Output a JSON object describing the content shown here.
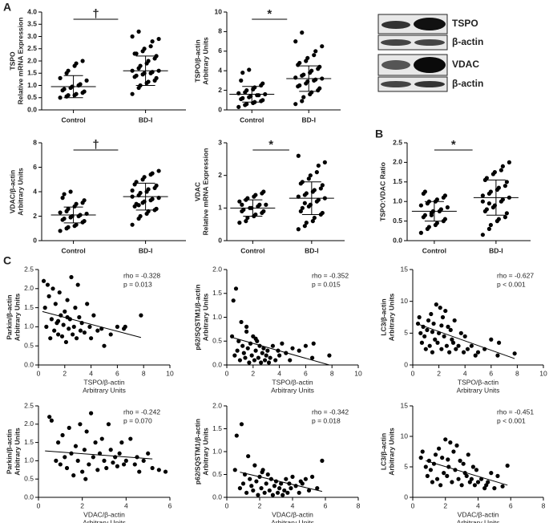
{
  "panel_labels": [
    "A",
    "B",
    "C"
  ],
  "blot": {
    "labels": [
      "TSPO",
      "β-actin",
      "VDAC",
      "β-actin"
    ]
  },
  "chart_data": [
    {
      "type": "dot",
      "ylabel": [
        "TSPO",
        "Relative mRNA Expression"
      ],
      "categories": [
        "Control",
        "BD-I"
      ],
      "significance": "†",
      "values": [
        [
          0.5,
          0.55,
          0.6,
          0.6,
          0.65,
          0.7,
          0.75,
          0.8,
          0.85,
          0.9,
          0.95,
          1.0,
          1.05,
          1.2,
          1.3,
          1.5,
          1.6,
          1.8,
          1.9,
          2.0
        ],
        [
          0.65,
          0.9,
          1.0,
          1.1,
          1.15,
          1.2,
          1.3,
          1.35,
          1.4,
          1.45,
          1.5,
          1.5,
          1.55,
          1.6,
          1.6,
          1.7,
          1.8,
          1.9,
          2.0,
          2.1,
          2.2,
          2.3,
          2.3,
          2.4,
          2.5,
          2.6,
          2.8,
          2.9,
          3.0,
          3.2
        ]
      ],
      "means": [
        0.95,
        1.6
      ],
      "sd": [
        0.45,
        0.6
      ],
      "color": "#000000",
      "ylim": [
        0,
        4
      ],
      "yticks": [
        {
          "value": 0,
          "label": "0.0"
        },
        0.5,
        {
          "value": 1,
          "label": "1.0"
        },
        1.5,
        {
          "value": 2,
          "label": "2.0"
        },
        2.5,
        {
          "value": 3,
          "label": "3.0"
        },
        3.5,
        {
          "value": 4,
          "label": "4.0"
        }
      ]
    },
    {
      "type": "dot",
      "ylabel": [
        "TSPO/β-actin",
        "Arbitrary Units"
      ],
      "categories": [
        "Control",
        "BD-I"
      ],
      "significance": "*",
      "values": [
        [
          0.3,
          0.5,
          0.6,
          0.7,
          0.8,
          0.9,
          1.0,
          1.1,
          1.2,
          1.3,
          1.4,
          1.5,
          1.5,
          1.6,
          1.7,
          1.8,
          2.0,
          2.1,
          2.3,
          2.5,
          2.7,
          3.0,
          3.8,
          4.1
        ],
        [
          0.6,
          0.9,
          1.3,
          1.6,
          1.8,
          2.0,
          2.2,
          2.4,
          2.5,
          2.7,
          2.9,
          3.0,
          3.1,
          3.2,
          3.3,
          3.5,
          3.6,
          3.8,
          4.0,
          4.2,
          4.4,
          4.6,
          4.8,
          5.0,
          5.3,
          5.6,
          6.0,
          6.5,
          7.0,
          7.9
        ]
      ],
      "means": [
        1.6,
        3.2
      ],
      "sd": [
        0.8,
        1.3
      ],
      "color": "#000000",
      "ylim": [
        0,
        10
      ],
      "yticks": [
        0,
        2,
        4,
        6,
        8,
        10
      ]
    },
    {
      "type": "dot",
      "ylabel": [
        "VDAC/β-actin",
        "Arbitrary Units"
      ],
      "categories": [
        "Control",
        "BD-I"
      ],
      "significance": "†",
      "values": [
        [
          0.8,
          1.0,
          1.1,
          1.2,
          1.3,
          1.5,
          1.6,
          1.7,
          1.8,
          1.9,
          2.0,
          2.0,
          2.1,
          2.2,
          2.3,
          2.4,
          2.6,
          2.8,
          3.0,
          3.1,
          3.3,
          3.5,
          3.8,
          4.0
        ],
        [
          1.3,
          1.8,
          2.0,
          2.2,
          2.4,
          2.5,
          2.6,
          2.8,
          3.0,
          3.1,
          3.2,
          3.3,
          3.4,
          3.5,
          3.6,
          3.7,
          3.9,
          4.0,
          4.2,
          4.3,
          4.5,
          4.6,
          4.8,
          5.0,
          5.2,
          5.4,
          5.5,
          5.7,
          4.1,
          2.9
        ]
      ],
      "means": [
        2.1,
        3.6
      ],
      "sd": [
        0.65,
        1.1
      ],
      "color": "#000000",
      "ylim": [
        0,
        8
      ],
      "yticks": [
        0,
        2,
        4,
        6,
        8
      ]
    },
    {
      "type": "dot",
      "ylabel": [
        "VDAC",
        "Relative mRNA Expression"
      ],
      "categories": [
        "Control",
        "BD-I"
      ],
      "significance": "*",
      "values": [
        [
          0.55,
          0.6,
          0.7,
          0.75,
          0.8,
          0.85,
          0.9,
          0.9,
          0.95,
          1.0,
          1.0,
          1.05,
          1.1,
          1.1,
          1.2,
          1.25,
          1.3,
          1.35,
          1.4,
          1.45,
          1.5,
          1.1
        ],
        [
          0.35,
          0.45,
          0.55,
          0.6,
          0.7,
          0.8,
          0.85,
          0.9,
          1.0,
          1.05,
          1.1,
          1.2,
          1.25,
          1.3,
          1.35,
          1.4,
          1.45,
          1.5,
          1.55,
          1.6,
          1.7,
          1.75,
          1.8,
          1.9,
          2.0,
          2.1,
          2.3,
          2.4,
          2.6,
          1.15
        ]
      ],
      "means": [
        1.0,
        1.3
      ],
      "sd": [
        0.25,
        0.5
      ],
      "color": "#000000",
      "ylim": [
        0,
        3
      ],
      "yticks": [
        0,
        1,
        2,
        3
      ]
    },
    {
      "type": "dot",
      "ylabel": [
        "TSPO:VDAC Ratio"
      ],
      "categories": [
        "Control",
        "BD-I"
      ],
      "significance": "*",
      "values": [
        [
          0.2,
          0.3,
          0.35,
          0.4,
          0.45,
          0.5,
          0.55,
          0.6,
          0.65,
          0.7,
          0.75,
          0.75,
          0.8,
          0.85,
          0.9,
          0.95,
          1.0,
          1.0,
          1.05,
          1.1,
          1.15,
          1.2,
          1.25,
          0.65
        ],
        [
          0.15,
          0.3,
          0.4,
          0.5,
          0.55,
          0.6,
          0.7,
          0.75,
          0.8,
          0.85,
          0.9,
          1.0,
          1.05,
          1.1,
          1.15,
          1.2,
          1.25,
          1.3,
          1.35,
          1.4,
          1.5,
          1.55,
          1.6,
          1.7,
          1.75,
          1.8,
          1.9,
          2.0,
          1.0,
          0.95
        ]
      ],
      "means": [
        0.75,
        1.1
      ],
      "sd": [
        0.25,
        0.45
      ],
      "color": "#000000",
      "ylim": [
        0,
        2.5
      ],
      "yticks": [
        {
          "value": 0,
          "label": "0.0"
        },
        0.5,
        {
          "value": 1,
          "label": "1.0"
        },
        1.5,
        {
          "value": 2,
          "label": "2.0"
        },
        2.5
      ]
    },
    {
      "type": "scatter",
      "xlabel": [
        "TSPO/β-actin",
        "Arbitrary Units"
      ],
      "ylabel": [
        "Parkin/β-actin",
        "Arbitrary Units"
      ],
      "annotation": [
        "rho = -0.328",
        "p = 0.013"
      ],
      "x": [
        0.4,
        0.5,
        0.6,
        0.7,
        0.8,
        0.9,
        1.0,
        1.1,
        1.2,
        1.3,
        1.4,
        1.5,
        1.6,
        1.7,
        1.8,
        1.9,
        2.0,
        2.1,
        2.2,
        2.3,
        2.4,
        2.5,
        2.6,
        2.7,
        2.8,
        2.9,
        3.0,
        3.1,
        3.2,
        3.3,
        3.5,
        3.7,
        3.9,
        4.0,
        4.2,
        4.5,
        4.8,
        5.0,
        5.5,
        6.0,
        6.5,
        6.6,
        7.8,
        1.5,
        2.2
      ],
      "y": [
        2.2,
        1.5,
        1.0,
        2.1,
        1.8,
        0.7,
        1.2,
        2.0,
        0.9,
        1.6,
        1.1,
        0.8,
        1.9,
        1.3,
        0.75,
        1.05,
        1.4,
        0.6,
        1.7,
        0.95,
        1.2,
        2.3,
        0.8,
        1.0,
        1.5,
        0.7,
        2.1,
        1.25,
        0.9,
        1.1,
        0.85,
        1.6,
        1.0,
        0.7,
        1.3,
        0.9,
        0.95,
        0.5,
        0.8,
        1.0,
        0.95,
        1.0,
        1.3,
        1.15,
        1.25
      ],
      "fit": {
        "x": [
          0.3,
          7.8
        ],
        "y": [
          1.4,
          0.72
        ]
      },
      "color": "#000000",
      "xlim": [
        0,
        10
      ],
      "xticks": [
        0,
        2,
        4,
        6,
        8,
        10
      ],
      "ylim": [
        0,
        2.5
      ],
      "yticks": [
        {
          "value": 0,
          "label": "0.0"
        },
        0.5,
        {
          "value": 1,
          "label": "1.0"
        },
        1.5,
        {
          "value": 2,
          "label": "2.0"
        },
        2.5
      ]
    },
    {
      "type": "scatter",
      "xlabel": [
        "TSPO/β-actin",
        "Arbitrary Units"
      ],
      "ylabel": [
        "p62/SQSTM1/β-actin",
        "Arbitrary Units"
      ],
      "annotation": [
        "rho = -0.352",
        "p = 0.015"
      ],
      "x": [
        0.4,
        0.5,
        0.6,
        0.7,
        0.8,
        0.9,
        1.0,
        1.1,
        1.2,
        1.3,
        1.4,
        1.5,
        1.6,
        1.7,
        1.8,
        1.9,
        2.0,
        2.1,
        2.2,
        2.3,
        2.4,
        2.5,
        2.6,
        2.7,
        2.8,
        2.9,
        3.0,
        3.1,
        3.2,
        3.3,
        3.5,
        3.7,
        3.9,
        4.0,
        4.2,
        4.5,
        4.8,
        5.0,
        5.5,
        6.0,
        6.5,
        6.6,
        7.8,
        1.5,
        2.2
      ],
      "y": [
        0.6,
        1.35,
        0.2,
        1.6,
        0.3,
        0.5,
        0.1,
        0.9,
        0.4,
        0.25,
        0.15,
        0.7,
        0.35,
        0.05,
        0.45,
        0.2,
        0.6,
        0.1,
        0.3,
        0.5,
        0.15,
        0.4,
        0.05,
        0.25,
        0.35,
        0.1,
        0.2,
        0.3,
        0.05,
        0.15,
        0.4,
        0.1,
        0.3,
        0.2,
        0.45,
        0.25,
        0.1,
        0.35,
        0.3,
        0.4,
        0.15,
        0.45,
        0.2,
        0.8,
        0.55
      ],
      "fit": {
        "x": [
          0.5,
          7.8
        ],
        "y": [
          0.57,
          0.0
        ]
      },
      "color": "#000000",
      "xlim": [
        0,
        10
      ],
      "xticks": [
        0,
        2,
        4,
        6,
        8,
        10
      ],
      "ylim": [
        0,
        2
      ],
      "yticks": [
        {
          "value": 0,
          "label": "0.0"
        },
        0.5,
        {
          "value": 1,
          "label": "1.0"
        },
        1.5,
        {
          "value": 2,
          "label": "2.0"
        }
      ]
    },
    {
      "type": "scatter",
      "xlabel": [
        "TSPO/β-actin",
        "Arbitrary Units"
      ],
      "ylabel": [
        "LC3/β-actin",
        "Arbitrary Units"
      ],
      "annotation": [
        "rho = -0.627",
        "p < 0.001"
      ],
      "x": [
        0.4,
        0.5,
        0.6,
        0.7,
        0.8,
        0.9,
        1.0,
        1.1,
        1.2,
        1.3,
        1.4,
        1.5,
        1.6,
        1.7,
        1.8,
        1.9,
        2.0,
        2.1,
        2.2,
        2.3,
        2.4,
        2.5,
        2.6,
        2.7,
        2.8,
        2.9,
        3.0,
        3.1,
        3.2,
        3.3,
        3.5,
        3.7,
        3.9,
        4.0,
        4.2,
        4.5,
        4.8,
        5.0,
        5.5,
        6.0,
        6.5,
        6.6,
        7.8,
        1.5,
        2.2
      ],
      "y": [
        6.5,
        7.5,
        5.0,
        3.5,
        6.0,
        4.5,
        2.5,
        5.5,
        7.0,
        3.0,
        8.0,
        2.0,
        6.5,
        4.0,
        9.5,
        3.5,
        5.0,
        9.0,
        2.5,
        7.5,
        4.5,
        8.5,
        3.0,
        6.0,
        2.0,
        5.5,
        4.0,
        3.5,
        7.0,
        2.5,
        3.0,
        5.0,
        2.0,
        4.5,
        2.5,
        3.0,
        1.5,
        2.0,
        2.5,
        4.0,
        1.5,
        3.5,
        1.8,
        5.2,
        6.2
      ],
      "fit": {
        "x": [
          0.3,
          7.8
        ],
        "y": [
          6.5,
          1.0
        ]
      },
      "color": "#000000",
      "xlim": [
        0,
        10
      ],
      "xticks": [
        0,
        2,
        4,
        6,
        8,
        10
      ],
      "ylim": [
        0,
        15
      ],
      "yticks": [
        0,
        5,
        10,
        15
      ]
    },
    {
      "type": "scatter",
      "xlabel": [
        "VDAC/β-actin",
        "Arbitrary Units"
      ],
      "ylabel": [
        "Parkin/β-actin",
        "Arbitrary Units"
      ],
      "annotation": [
        "rho = -0.242",
        "p = 0.070"
      ],
      "x": [
        0.5,
        0.6,
        0.8,
        0.9,
        1.0,
        1.1,
        1.2,
        1.3,
        1.4,
        1.5,
        1.6,
        1.7,
        1.8,
        1.9,
        2.0,
        2.1,
        2.2,
        2.3,
        2.4,
        2.5,
        2.6,
        2.7,
        2.8,
        2.9,
        3.0,
        3.1,
        3.2,
        3.3,
        3.4,
        3.5,
        3.6,
        3.7,
        3.8,
        3.9,
        4.0,
        4.2,
        4.4,
        4.5,
        4.6,
        4.8,
        5.0,
        5.2,
        5.5,
        5.8,
        2.15
      ],
      "y": [
        2.2,
        2.1,
        1.0,
        1.5,
        0.9,
        1.7,
        1.1,
        0.8,
        1.9,
        1.2,
        0.6,
        1.4,
        1.0,
        2.0,
        0.7,
        1.3,
        1.8,
        0.9,
        2.3,
        1.1,
        1.5,
        0.75,
        1.2,
        1.6,
        1.0,
        0.8,
        2.0,
        1.3,
        0.95,
        1.1,
        0.85,
        1.2,
        1.5,
        0.9,
        1.0,
        1.6,
        0.9,
        1.1,
        0.7,
        1.0,
        1.2,
        0.8,
        0.75,
        0.7,
        0.5
      ],
      "fit": {
        "x": [
          0.3,
          5.2
        ],
        "y": [
          1.27,
          1.05
        ]
      },
      "color": "#000000",
      "xlim": [
        0,
        6
      ],
      "xticks": [
        0,
        2,
        4,
        6
      ],
      "ylim": [
        0,
        2.5
      ],
      "yticks": [
        {
          "value": 0,
          "label": "0.0"
        },
        0.5,
        {
          "value": 1,
          "label": "1.0"
        },
        1.5,
        {
          "value": 2,
          "label": "2.0"
        },
        2.5
      ]
    },
    {
      "type": "scatter",
      "xlabel": [
        "VDAC/β-actin",
        "Arbitrary Units"
      ],
      "ylabel": [
        "p62/SQSTM1/β-actin",
        "Arbitrary Units"
      ],
      "annotation": [
        "rho = -0.342",
        "p = 0.018"
      ],
      "x": [
        0.5,
        0.6,
        0.8,
        0.9,
        1.0,
        1.1,
        1.2,
        1.3,
        1.4,
        1.5,
        1.6,
        1.7,
        1.8,
        1.9,
        2.0,
        2.1,
        2.2,
        2.3,
        2.4,
        2.5,
        2.6,
        2.7,
        2.8,
        2.9,
        3.0,
        3.1,
        3.2,
        3.3,
        3.4,
        3.5,
        3.6,
        3.7,
        3.8,
        3.9,
        4.0,
        4.2,
        4.4,
        4.5,
        4.6,
        4.8,
        5.0,
        5.2,
        5.5,
        5.8,
        2.15
      ],
      "y": [
        0.6,
        1.35,
        0.2,
        1.6,
        0.3,
        0.5,
        0.1,
        0.9,
        0.4,
        0.25,
        0.15,
        0.7,
        0.35,
        0.05,
        0.45,
        0.2,
        0.6,
        0.1,
        0.3,
        0.5,
        0.15,
        0.4,
        0.05,
        0.25,
        0.35,
        0.1,
        0.2,
        0.3,
        0.05,
        0.15,
        0.4,
        0.1,
        0.3,
        0.2,
        0.45,
        0.25,
        0.1,
        0.35,
        0.3,
        0.4,
        0.15,
        0.45,
        0.2,
        0.8,
        0.55
      ],
      "fit": {
        "x": [
          0.8,
          5.8
        ],
        "y": [
          0.55,
          0.13
        ]
      },
      "color": "#000000",
      "xlim": [
        0,
        8
      ],
      "xticks": [
        0,
        2,
        4,
        6,
        8
      ],
      "ylim": [
        0,
        2
      ],
      "yticks": [
        {
          "value": 0,
          "label": "0.0"
        },
        0.5,
        {
          "value": 1,
          "label": "1.0"
        },
        1.5,
        {
          "value": 2,
          "label": "2.0"
        }
      ]
    },
    {
      "type": "scatter",
      "xlabel": [
        "VDAC/β-actin",
        "Arbitrary Units"
      ],
      "ylabel": [
        "LC3/β-actin",
        "Arbitrary Units"
      ],
      "annotation": [
        "rho = -0.451",
        "p < 0.001"
      ],
      "x": [
        0.5,
        0.6,
        0.8,
        0.9,
        1.0,
        1.1,
        1.2,
        1.3,
        1.4,
        1.5,
        1.6,
        1.7,
        1.8,
        1.9,
        2.0,
        2.1,
        2.2,
        2.3,
        2.4,
        2.5,
        2.6,
        2.7,
        2.8,
        2.9,
        3.0,
        3.1,
        3.2,
        3.3,
        3.4,
        3.5,
        3.6,
        3.7,
        3.8,
        3.9,
        4.0,
        4.2,
        4.4,
        4.5,
        4.6,
        4.8,
        5.0,
        5.2,
        5.5,
        5.8,
        2.15
      ],
      "y": [
        6.5,
        7.5,
        5.0,
        3.5,
        6.0,
        4.5,
        2.5,
        5.5,
        7.0,
        3.0,
        8.0,
        2.0,
        6.5,
        4.0,
        9.5,
        3.5,
        5.0,
        9.0,
        2.5,
        7.5,
        4.5,
        8.5,
        3.0,
        6.0,
        2.0,
        5.5,
        4.0,
        3.5,
        7.0,
        2.5,
        3.0,
        5.0,
        2.0,
        4.5,
        2.5,
        3.0,
        1.5,
        2.0,
        2.5,
        4.0,
        1.5,
        3.5,
        1.8,
        5.2,
        6.2
      ],
      "fit": {
        "x": [
          0.8,
          5.8
        ],
        "y": [
          6.0,
          2.0
        ]
      },
      "color": "#000000",
      "xlim": [
        0,
        8
      ],
      "xticks": [
        0,
        2,
        4,
        6,
        8
      ],
      "ylim": [
        0,
        15
      ],
      "yticks": [
        0,
        5,
        10,
        15
      ]
    }
  ]
}
